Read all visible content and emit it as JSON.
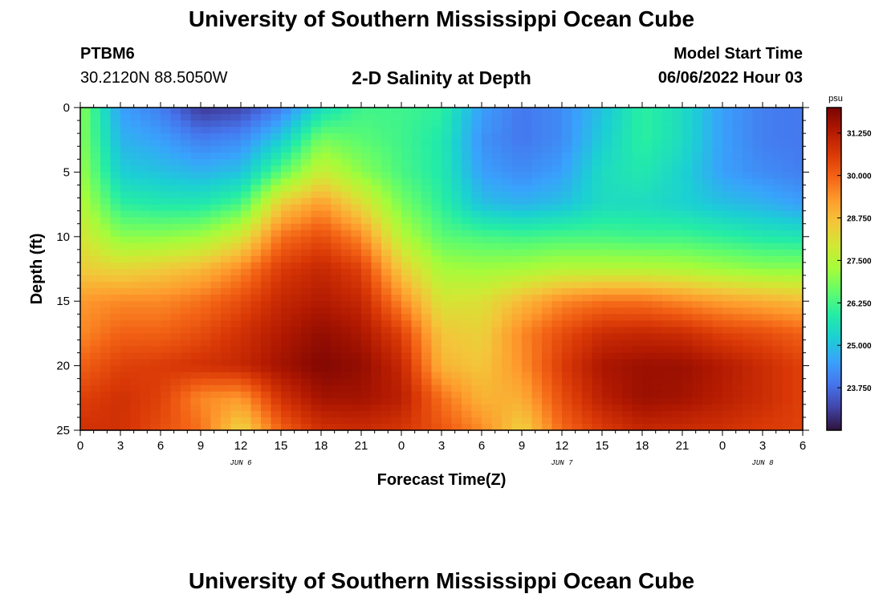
{
  "header": {
    "title": "University of Southern Mississippi Ocean Cube",
    "station": "PTBM6",
    "coordinates": "30.2120N  88.5050W",
    "subtitle": "2-D Salinity at Depth",
    "model_start_label": "Model Start Time",
    "model_start_value": "06/06/2022 Hour 03"
  },
  "footer": {
    "title": "University of Southern Mississippi Ocean Cube"
  },
  "colors": {
    "background": "#ffffff",
    "axis": "#000000"
  },
  "chart_data": {
    "type": "heatmap",
    "title": "2-D Salinity at Depth",
    "xlabel": "Forecast Time(Z)",
    "ylabel": "Depth (ft)",
    "x_ticks": [
      "0",
      "3",
      "6",
      "9",
      "12",
      "15",
      "18",
      "21",
      "0",
      "3",
      "6",
      "9",
      "12",
      "15",
      "18",
      "21",
      "0",
      "3",
      "6"
    ],
    "x_range_hours": [
      0,
      54
    ],
    "date_labels": [
      {
        "label": "JUN 6",
        "hour": 12
      },
      {
        "label": "JUN 7",
        "hour": 36
      },
      {
        "label": "JUN 8",
        "hour": 51
      }
    ],
    "y_ticks": [
      "0",
      "5",
      "10",
      "15",
      "20",
      "25"
    ],
    "y_range_ft": [
      0,
      25
    ],
    "colorbar": {
      "unit": "psu",
      "range": [
        22.5,
        32.0
      ],
      "ticks": [
        "31.250",
        "30.000",
        "28.750",
        "27.500",
        "26.250",
        "25.000",
        "23.750"
      ],
      "tick_values": [
        31.25,
        30.0,
        28.75,
        27.5,
        26.25,
        25.0,
        23.75
      ],
      "colormap": [
        "#30123b",
        "#4145ab",
        "#4675ed",
        "#39a2fc",
        "#1bcfd4",
        "#24eca6",
        "#61fc6c",
        "#a4fc3b",
        "#d1e834",
        "#f3c63a",
        "#fe9b2d",
        "#f36315",
        "#d93806",
        "#b11901",
        "#7a0402"
      ]
    },
    "depths_ft": [
      0,
      2.5,
      5,
      7.5,
      10,
      12.5,
      15,
      17.5,
      20,
      22.5,
      25
    ],
    "hours": [
      0,
      3,
      6,
      9,
      12,
      15,
      18,
      21,
      24,
      27,
      30,
      33,
      36,
      39,
      42,
      45,
      48,
      51,
      54
    ],
    "salinity_psu": [
      [
        27.0,
        24.5,
        24.0,
        23.0,
        23.2,
        24.0,
        25.5,
        26.2,
        26.2,
        26.0,
        24.5,
        23.9,
        24.2,
        25.0,
        26.0,
        25.5,
        24.5,
        24.0,
        23.9
      ],
      [
        27.0,
        24.8,
        24.5,
        24.0,
        24.2,
        25.2,
        26.8,
        26.5,
        26.2,
        25.8,
        24.3,
        23.9,
        24.2,
        25.2,
        26.0,
        25.5,
        24.5,
        24.0,
        23.9
      ],
      [
        27.2,
        25.2,
        25.0,
        24.8,
        25.0,
        26.5,
        27.8,
        27.0,
        26.3,
        25.8,
        24.5,
        24.2,
        24.5,
        25.5,
        25.8,
        25.3,
        24.5,
        24.2,
        24.0
      ],
      [
        27.5,
        26.0,
        25.8,
        25.8,
        26.3,
        28.5,
        29.3,
        28.2,
        26.8,
        26.0,
        25.0,
        24.8,
        25.0,
        25.5,
        25.5,
        25.3,
        25.0,
        24.8,
        24.5
      ],
      [
        28.0,
        27.0,
        27.0,
        27.2,
        28.0,
        29.8,
        30.3,
        29.5,
        27.5,
        26.5,
        26.3,
        26.2,
        26.3,
        26.3,
        26.2,
        26.2,
        26.0,
        25.8,
        25.7
      ],
      [
        28.5,
        28.3,
        28.5,
        28.8,
        29.5,
        30.6,
        31.0,
        30.5,
        28.5,
        27.3,
        27.2,
        27.3,
        27.5,
        27.5,
        27.5,
        27.4,
        27.2,
        27.0,
        27.0
      ],
      [
        29.3,
        29.5,
        29.5,
        29.8,
        30.3,
        31.0,
        31.3,
        31.0,
        29.5,
        28.0,
        28.1,
        28.8,
        29.5,
        29.8,
        29.8,
        29.5,
        29.2,
        29.0,
        28.8
      ],
      [
        29.5,
        30.0,
        30.0,
        30.3,
        30.8,
        31.3,
        31.7,
        31.4,
        30.5,
        28.6,
        28.4,
        29.5,
        30.3,
        30.9,
        31.0,
        30.9,
        30.5,
        30.3,
        30.0
      ],
      [
        30.0,
        30.5,
        30.6,
        30.8,
        31.0,
        31.5,
        31.9,
        31.7,
        31.0,
        28.9,
        28.6,
        29.4,
        30.6,
        31.4,
        31.6,
        31.6,
        31.3,
        30.9,
        30.5
      ],
      [
        30.5,
        30.8,
        30.5,
        29.5,
        29.3,
        30.8,
        31.5,
        31.5,
        31.2,
        29.8,
        28.9,
        29.0,
        30.3,
        31.2,
        31.6,
        31.5,
        31.2,
        30.9,
        30.5
      ],
      [
        30.8,
        30.8,
        30.3,
        29.8,
        28.3,
        30.0,
        30.8,
        30.9,
        30.7,
        30.2,
        29.5,
        28.4,
        29.9,
        30.6,
        31.0,
        30.9,
        30.8,
        30.6,
        30.5
      ]
    ]
  }
}
